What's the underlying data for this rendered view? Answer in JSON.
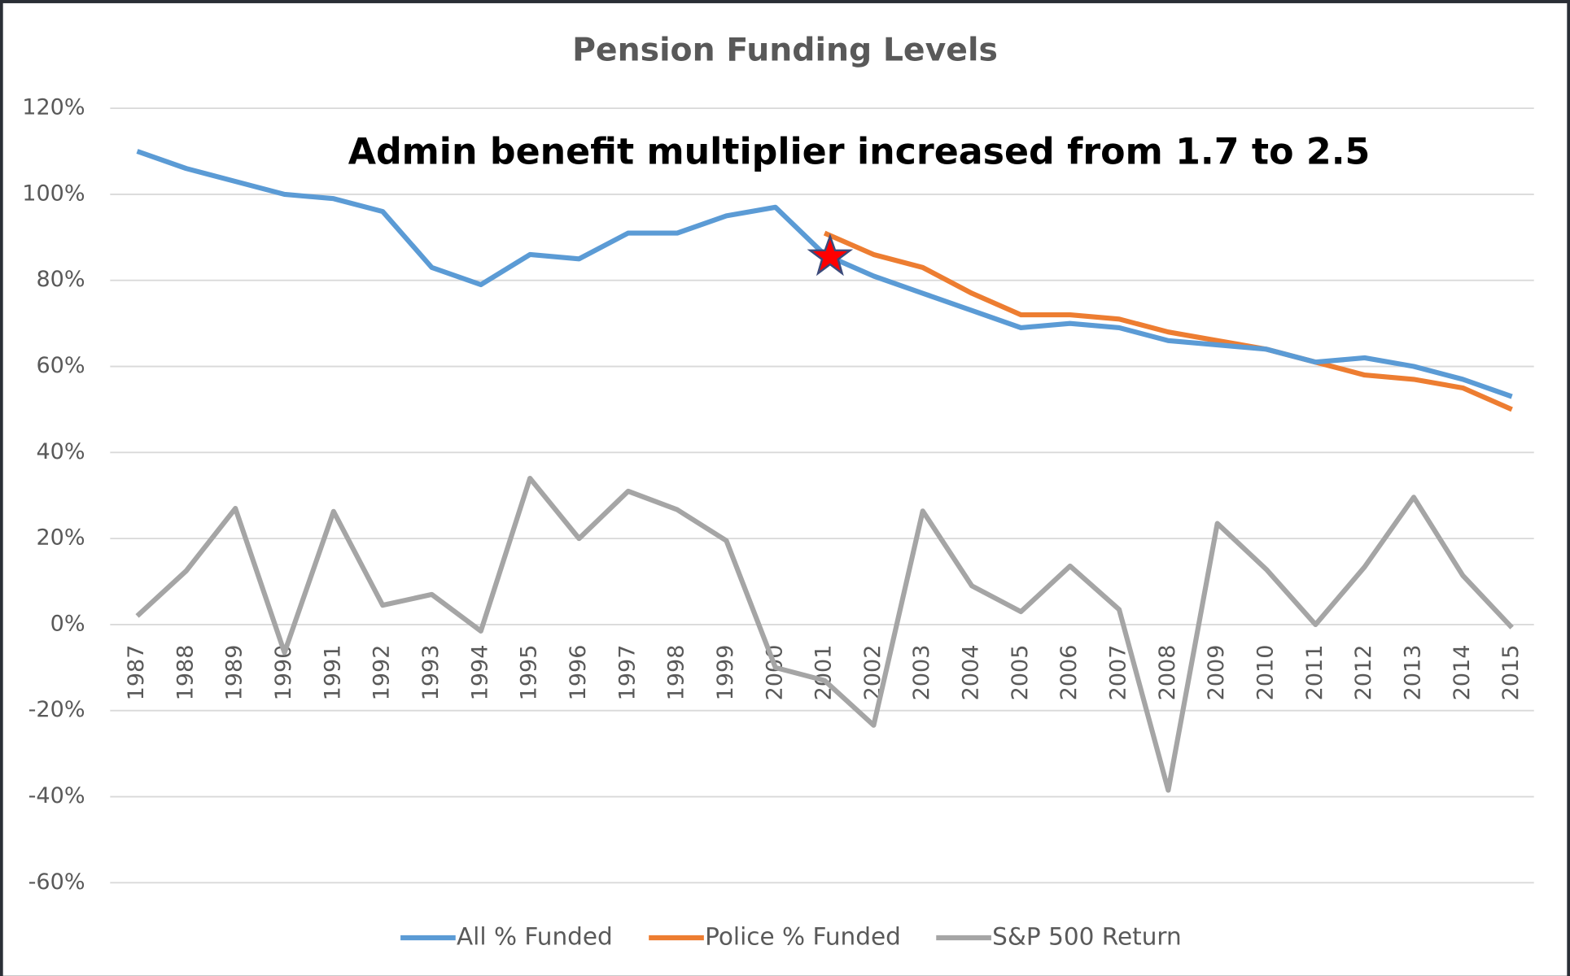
{
  "chart_data": {
    "type": "line",
    "title": "Pension Funding Levels",
    "annotation": "Admin benefit multiplier increased from 1.7 to 2.5",
    "categories": [
      "1987",
      "1988",
      "1989",
      "1990",
      "1991",
      "1992",
      "1993",
      "1994",
      "1995",
      "1996",
      "1997",
      "1998",
      "1999",
      "2000",
      "2001",
      "2002",
      "2003",
      "2004",
      "2005",
      "2006",
      "2007",
      "2008",
      "2009",
      "2010",
      "2011",
      "2012",
      "2013",
      "2014",
      "2015"
    ],
    "series": [
      {
        "name": "All % Funded",
        "color": "#5b9bd5",
        "values": [
          110,
          106,
          103,
          100,
          99,
          96,
          83,
          79,
          86,
          85,
          91,
          91,
          95,
          97,
          86,
          81,
          77,
          73,
          69,
          70,
          69,
          66,
          65,
          64,
          61,
          62,
          60,
          57,
          53
        ]
      },
      {
        "name": "Police % Funded",
        "color": "#ed7d31",
        "values": [
          null,
          null,
          null,
          null,
          null,
          null,
          null,
          null,
          null,
          null,
          null,
          null,
          null,
          null,
          91,
          86,
          83,
          77,
          72,
          72,
          71,
          68,
          66,
          64,
          61,
          58,
          57,
          55,
          50
        ]
      },
      {
        "name": "S&P 500 Return",
        "color": "#a5a5a5",
        "values": [
          2,
          12.5,
          27,
          -6.5,
          26.3,
          4.5,
          7,
          -1.5,
          34,
          20,
          31,
          26.7,
          19.5,
          -10,
          -13,
          -23.4,
          26.4,
          9,
          3,
          13.6,
          3.5,
          -38.5,
          23.5,
          12.8,
          0,
          13.4,
          29.6,
          11.4,
          -0.7
        ]
      }
    ],
    "ylim": [
      -60,
      120
    ],
    "yticks": [
      {
        "value": -60,
        "label": "-60%"
      },
      {
        "value": -40,
        "label": "-40%"
      },
      {
        "value": -20,
        "label": "-20%"
      },
      {
        "value": 0,
        "label": "0%"
      },
      {
        "value": 20,
        "label": "20%"
      },
      {
        "value": 40,
        "label": "40%"
      },
      {
        "value": 60,
        "label": "60%"
      },
      {
        "value": 80,
        "label": "80%"
      },
      {
        "value": 100,
        "label": "100%"
      },
      {
        "value": 120,
        "label": "120%"
      }
    ],
    "grid": true,
    "legend": "bottom"
  }
}
